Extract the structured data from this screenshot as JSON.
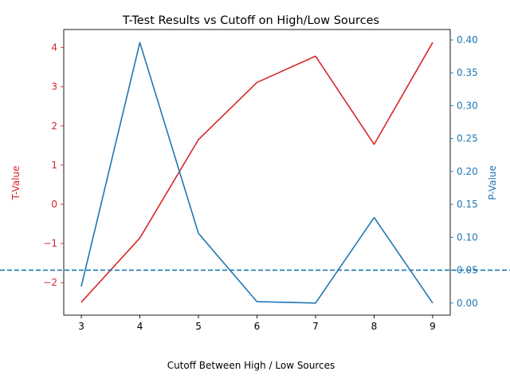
{
  "chart_data": {
    "type": "line",
    "title": "T-Test Results vs Cutoff on High/Low Sources",
    "xlabel": "Cutoff Between High / Low Sources",
    "x": [
      3,
      4,
      5,
      6,
      7,
      8,
      9
    ],
    "xlim": [
      2.7,
      9.3
    ],
    "xticks": [
      "3",
      "4",
      "5",
      "6",
      "7",
      "8",
      "9"
    ],
    "left_axis": {
      "label": "T-Value",
      "color": "#d62728",
      "ylim": [
        -2.83,
        4.46
      ],
      "ticks": [
        -2,
        -1,
        0,
        1,
        2,
        3,
        4
      ],
      "tick_labels": [
        "−2",
        "−1",
        "0",
        "1",
        "2",
        "3",
        "4"
      ]
    },
    "right_axis": {
      "label": "P-Value",
      "color": "#1f77b4",
      "ylim": [
        -0.0185,
        0.4158
      ],
      "ticks": [
        0.0,
        0.05,
        0.1,
        0.15,
        0.2,
        0.25,
        0.3,
        0.35,
        0.4
      ],
      "tick_labels": [
        "0.00",
        "0.05",
        "0.10",
        "0.15",
        "0.20",
        "0.25",
        "0.30",
        "0.35",
        "0.40"
      ]
    },
    "series": [
      {
        "axis": "left",
        "color": "#d62728",
        "values": [
          -2.5,
          -0.86,
          1.65,
          3.11,
          3.78,
          1.53,
          4.13
        ]
      },
      {
        "axis": "right",
        "color": "#1f77b4",
        "values": [
          0.025,
          0.396,
          0.106,
          0.002,
          0.0,
          0.13,
          0.0
        ]
      }
    ],
    "reference_line": {
      "axis": "right",
      "value": 0.05,
      "style": "dashed",
      "color": "#1f77b4"
    },
    "grid": false
  }
}
